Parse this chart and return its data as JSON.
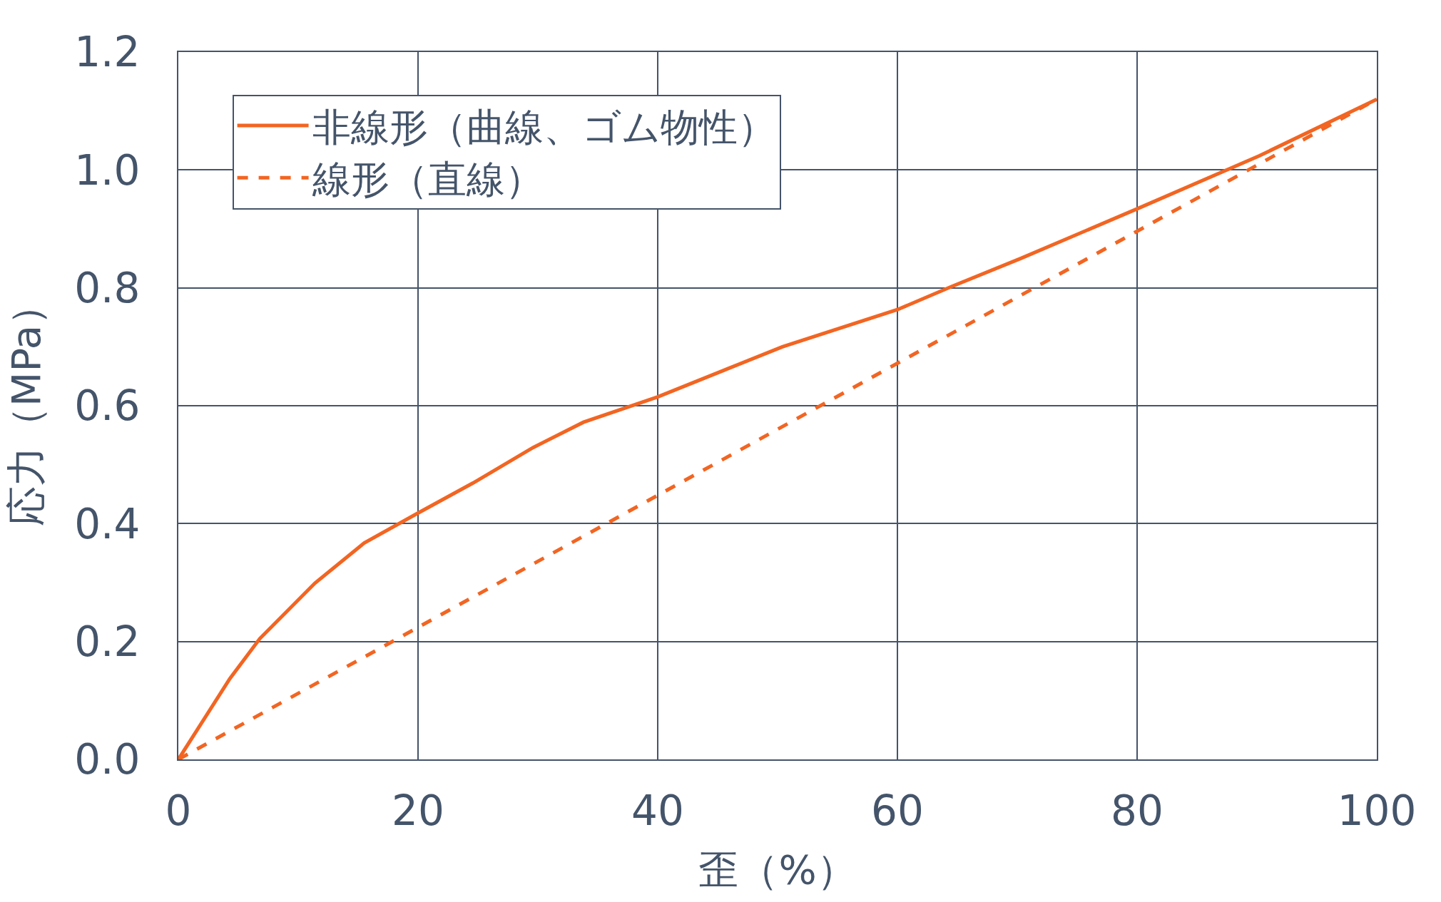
{
  "chart_data": {
    "type": "line",
    "xlabel": "歪（%）",
    "ylabel": "応力（MPa）",
    "xlim": [
      0,
      100
    ],
    "xticks": [
      0,
      20,
      40,
      60,
      80,
      100
    ],
    "ylim": [
      0,
      1.2
    ],
    "yticks": [
      {
        "value": 0,
        "label": "0.0"
      },
      {
        "value": 0.2,
        "label": "0.2"
      },
      {
        "value": 0.4,
        "label": "0.4"
      },
      {
        "value": 0.6,
        "label": "0.6"
      },
      {
        "value": 0.8,
        "label": "0.8"
      },
      {
        "value": 1.0,
        "label": "1.0"
      },
      {
        "value": 1.2,
        "label": "1.2"
      }
    ],
    "grid": true,
    "legend": "top left",
    "marker": "none",
    "series": [
      {
        "name": "非線形（曲線、ゴム物性）",
        "color": "#f26522",
        "line_style": "solid",
        "x": [
          0,
          4.3,
          6.8,
          11.4,
          15.5,
          20,
          24.6,
          29.6,
          33.8,
          40,
          50.4,
          60,
          64.5,
          70.3,
          80,
          90.2,
          100
        ],
        "values": [
          0,
          0.137,
          0.205,
          0.299,
          0.367,
          0.418,
          0.469,
          0.529,
          0.572,
          0.615,
          0.7,
          0.763,
          0.802,
          0.85,
          0.934,
          1.024,
          1.12
        ]
      },
      {
        "name": "線形（直線）",
        "color": "#f26522",
        "line_style": "dashed",
        "x": [
          0,
          100
        ],
        "values": [
          0,
          1.12
        ]
      }
    ]
  }
}
